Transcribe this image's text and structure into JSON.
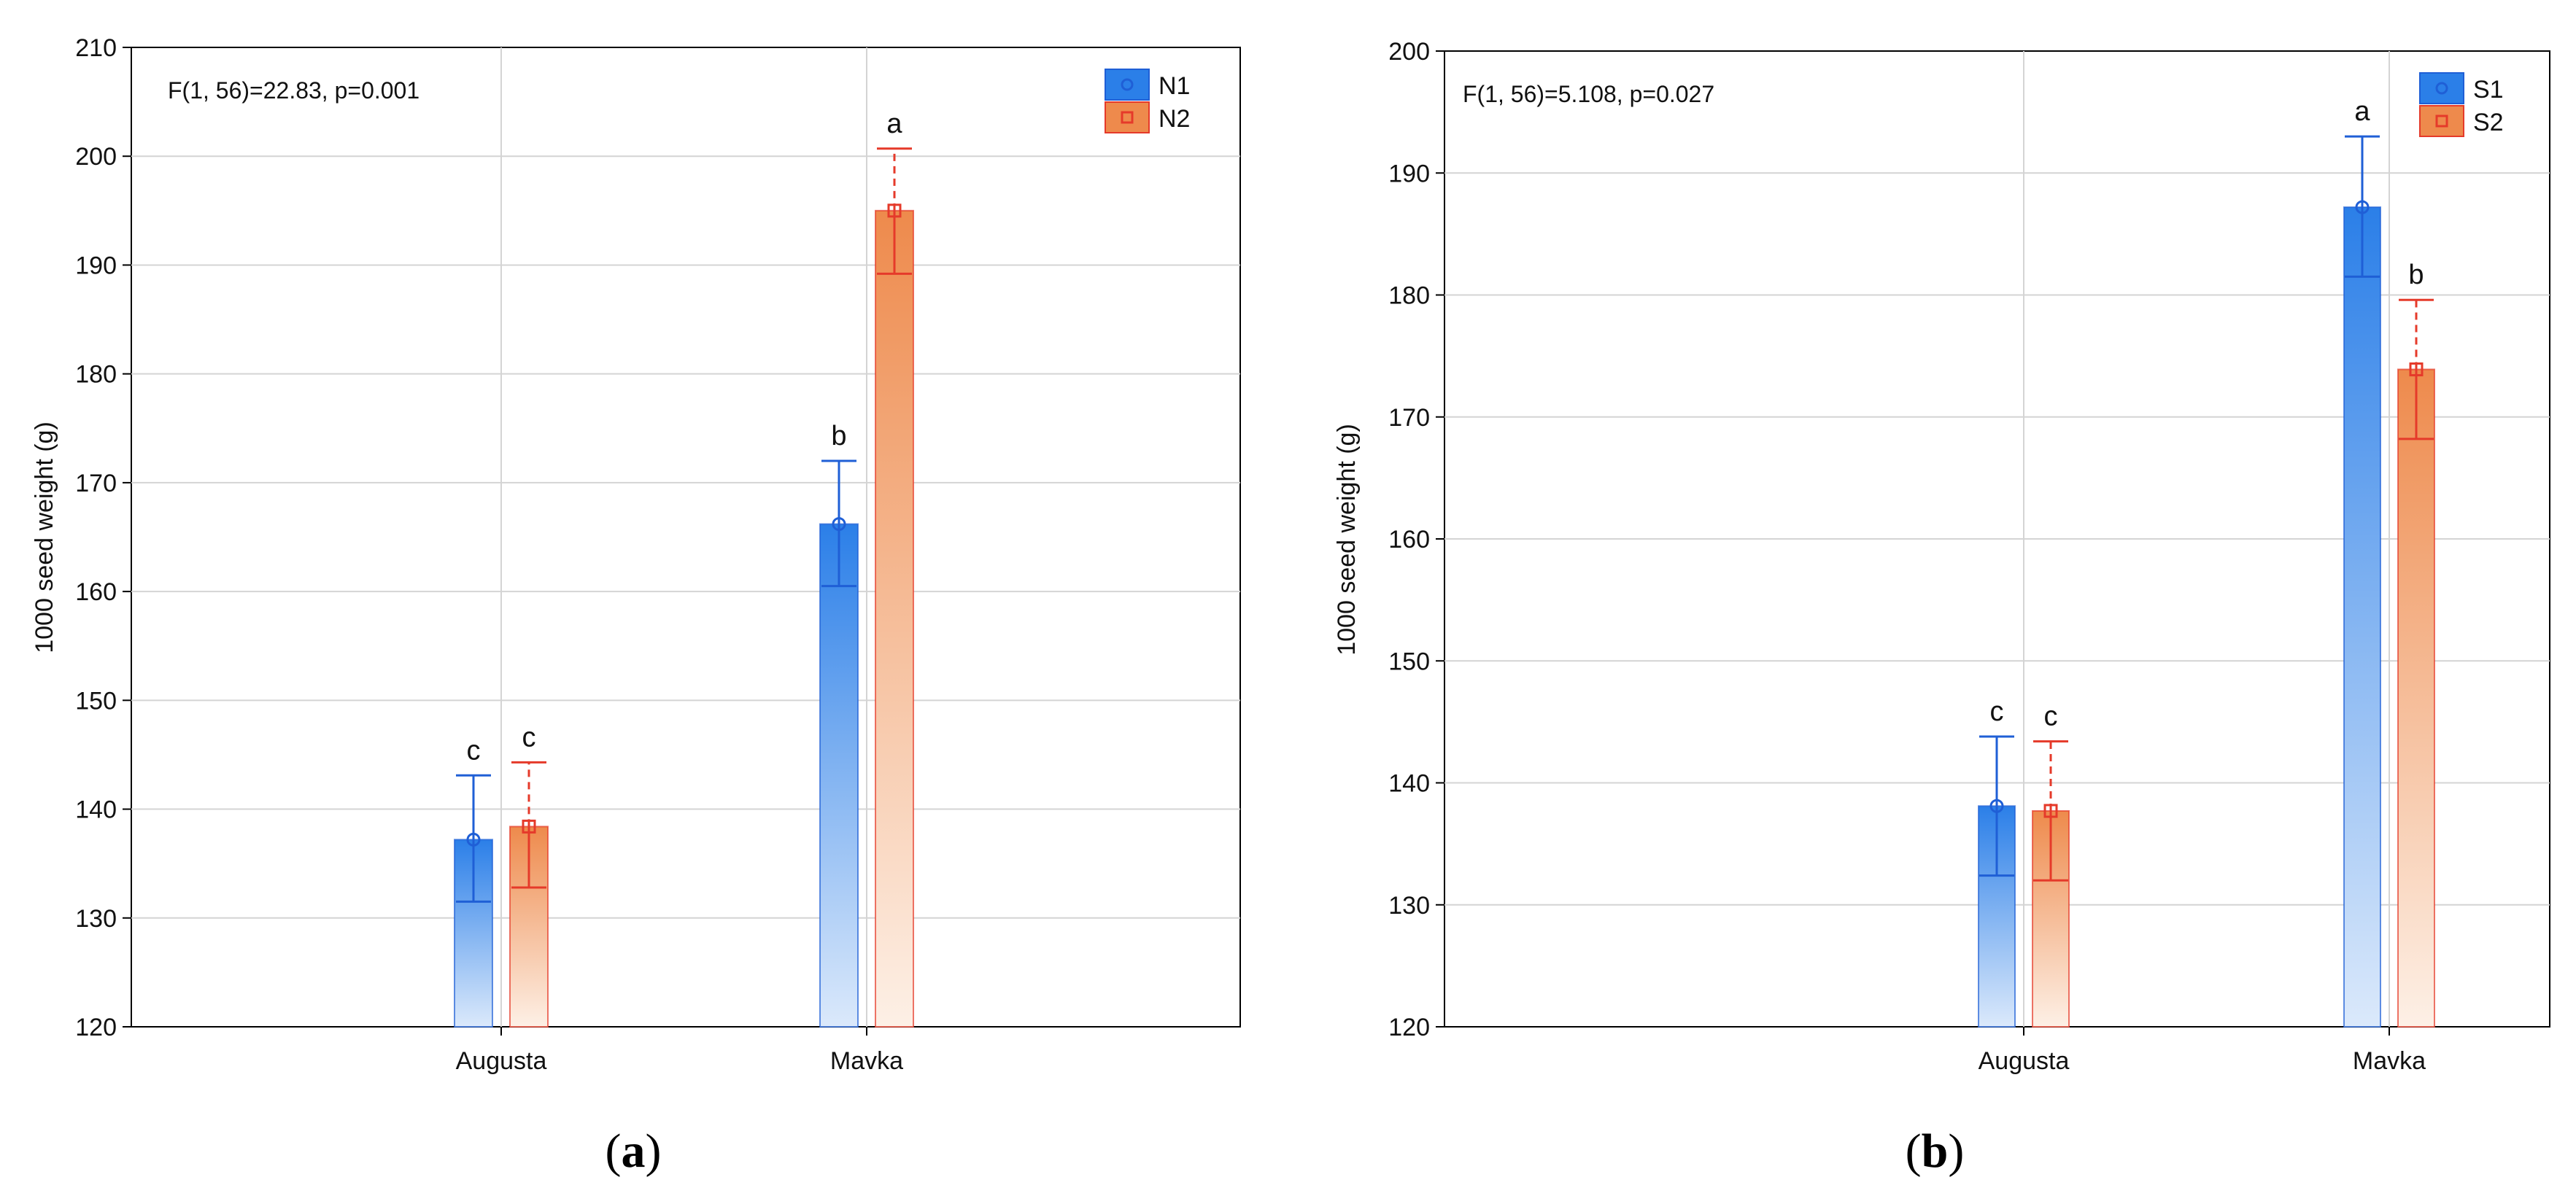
{
  "chart_data": [
    {
      "type": "bar",
      "panel_label": "a",
      "ylabel": "1000 seed weight (g)",
      "xlabel": "",
      "ylim": [
        120,
        210
      ],
      "yticks": [
        120,
        130,
        140,
        150,
        160,
        170,
        180,
        190,
        200,
        210
      ],
      "categories": [
        "Augusta",
        "Mavka"
      ],
      "annotation": "F(1, 56)=22.83, p=0.001",
      "legend_position": "top-right",
      "series": [
        {
          "name": "N1",
          "color": "#1f5fd6",
          "fill_top": "#2b7fe8",
          "fill_bottom": "#dbe9fb",
          "marker": "circle",
          "values": [
            137.2,
            166.2
          ],
          "err_low": [
            131.5,
            160.5
          ],
          "err_high": [
            143.1,
            172.0
          ],
          "letters": [
            "c",
            "b"
          ]
        },
        {
          "name": "N2",
          "color": "#e53a2a",
          "fill_top": "#ee8a4c",
          "fill_bottom": "#fdf0e6",
          "marker": "square",
          "values": [
            138.4,
            195.0
          ],
          "err_low": [
            132.8,
            189.2
          ],
          "err_high": [
            144.3,
            200.7
          ],
          "letters": [
            "c",
            "a"
          ]
        }
      ]
    },
    {
      "type": "bar",
      "panel_label": "b",
      "ylabel": "1000 seed weight (g)",
      "xlabel": "",
      "ylim": [
        120,
        200
      ],
      "yticks": [
        120,
        130,
        140,
        150,
        160,
        170,
        180,
        190,
        200
      ],
      "categories": [
        "Augusta",
        "Mavka"
      ],
      "annotation": "F(1, 56)=5.108, p=0.027",
      "legend_position": "top-right",
      "series": [
        {
          "name": "S1",
          "color": "#1f5fd6",
          "fill_top": "#2b7fe8",
          "fill_bottom": "#dbe9fb",
          "marker": "circle",
          "values": [
            138.1,
            187.2
          ],
          "err_low": [
            132.4,
            181.5
          ],
          "err_high": [
            143.8,
            193.0
          ],
          "letters": [
            "c",
            "a"
          ]
        },
        {
          "name": "S2",
          "color": "#e53a2a",
          "fill_top": "#ee8a4c",
          "fill_bottom": "#fdf0e6",
          "marker": "square",
          "values": [
            137.7,
            173.9
          ],
          "err_low": [
            132.0,
            168.2
          ],
          "err_high": [
            143.4,
            179.6
          ],
          "letters": [
            "c",
            "b"
          ]
        }
      ]
    }
  ],
  "captions": {
    "a": {
      "open": "(",
      "letter": "a",
      "close": ")"
    },
    "b": {
      "open": "(",
      "letter": "b",
      "close": ")"
    }
  }
}
